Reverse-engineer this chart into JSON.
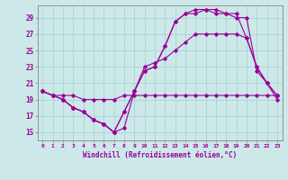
{
  "xlabel": "Windchill (Refroidissement éolien,°C)",
  "background_color": "#cce8e8",
  "line_color": "#990099",
  "grid_color": "#aad4d4",
  "x_ticks": [
    0,
    1,
    2,
    3,
    4,
    5,
    6,
    7,
    8,
    9,
    10,
    11,
    12,
    13,
    14,
    15,
    16,
    17,
    18,
    19,
    20,
    21,
    22,
    23
  ],
  "y_ticks": [
    15,
    17,
    19,
    21,
    23,
    25,
    27,
    29
  ],
  "ylim": [
    14.0,
    30.5
  ],
  "xlim": [
    -0.5,
    23.5
  ],
  "series": [
    [
      20.0,
      19.5,
      19.5,
      19.5,
      19.0,
      19.0,
      19.0,
      19.0,
      19.5,
      19.5,
      19.5,
      19.5,
      19.5,
      19.5,
      19.5,
      19.5,
      19.5,
      19.5,
      19.5,
      19.5,
      19.5,
      19.5,
      19.5,
      19.5
    ],
    [
      20.0,
      19.5,
      19.0,
      18.0,
      17.5,
      16.5,
      16.0,
      15.0,
      15.5,
      20.0,
      23.0,
      23.5,
      24.0,
      25.0,
      26.0,
      27.0,
      27.0,
      27.0,
      27.0,
      27.0,
      26.5,
      23.0,
      21.0,
      19.0
    ],
    [
      20.0,
      19.5,
      19.0,
      18.0,
      17.5,
      16.5,
      16.0,
      15.0,
      17.5,
      20.0,
      22.5,
      23.0,
      25.5,
      28.5,
      29.5,
      29.5,
      30.0,
      29.5,
      29.5,
      29.0,
      29.0,
      22.5,
      21.0,
      19.5
    ],
    [
      20.0,
      19.5,
      19.0,
      18.0,
      17.5,
      16.5,
      16.0,
      15.0,
      17.5,
      20.0,
      22.5,
      23.0,
      25.5,
      28.5,
      29.5,
      30.0,
      30.0,
      30.0,
      29.5,
      29.5,
      26.5,
      23.0,
      21.0,
      19.5
    ]
  ]
}
